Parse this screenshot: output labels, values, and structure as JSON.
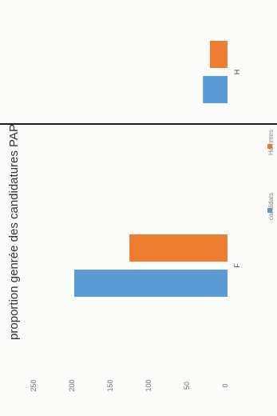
{
  "chart_data": {
    "type": "bar",
    "title": "proportion genrée des candidatures PAP",
    "categories": [
      "F",
      "H"
    ],
    "series": [
      {
        "name": "candidats",
        "color": "#5b9bd5",
        "values": [
          200,
          32
        ]
      },
      {
        "name": "Hommes",
        "color": "#ed7d31",
        "values": [
          128,
          23
        ]
      }
    ],
    "ylim": [
      0,
      250
    ],
    "yticks": [
      250,
      200,
      150,
      100,
      50,
      0
    ],
    "grid": false,
    "legend": "bottom",
    "orientation": "rotated"
  }
}
